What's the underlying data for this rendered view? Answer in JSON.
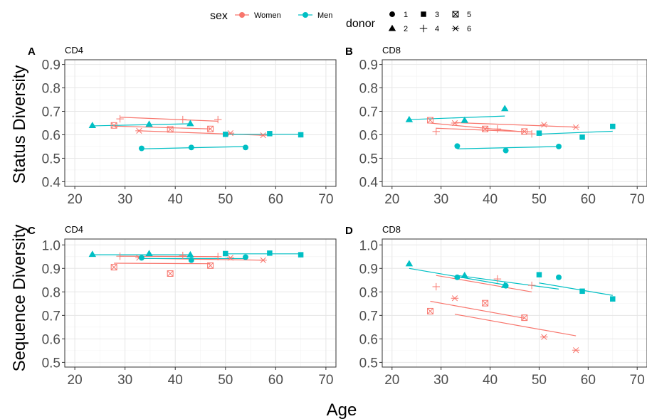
{
  "figure": {
    "xlabel_shared": "Age",
    "row_labels": [
      "Status Diversity",
      "Sequence Diversity"
    ]
  },
  "legend": {
    "sex_title": "sex",
    "sex_entries": [
      {
        "label": "Women",
        "color": "#F8766D"
      },
      {
        "label": "Men",
        "color": "#00BFC4"
      }
    ],
    "donor_title": "donor",
    "donor_entries": [
      {
        "label": "1",
        "shape": "circle"
      },
      {
        "label": "2",
        "shape": "triangle"
      },
      {
        "label": "3",
        "shape": "square"
      },
      {
        "label": "4",
        "shape": "plus"
      },
      {
        "label": "5",
        "shape": "boxed-x"
      },
      {
        "label": "6",
        "shape": "asterisk"
      }
    ]
  },
  "chart_data": [
    {
      "panel": "A",
      "title": "CD4",
      "type": "scatter",
      "xlim": [
        18,
        72
      ],
      "ylim": [
        0.38,
        0.92
      ],
      "xticks": [
        20,
        30,
        40,
        50,
        60,
        70
      ],
      "yticks": [
        0.4,
        0.5,
        0.6,
        0.7,
        0.8,
        0.9
      ],
      "ytick_labels": [
        "0.4",
        "0.5",
        "0.6",
        "0.7",
        "0.8",
        "0.9"
      ],
      "grid": true,
      "points": [
        {
          "x": 29,
          "y": 0.668,
          "sex": "Women",
          "donor": "4"
        },
        {
          "x": 41.5,
          "y": 0.665,
          "sex": "Women",
          "donor": "4"
        },
        {
          "x": 48.5,
          "y": 0.665,
          "sex": "Women",
          "donor": "4"
        },
        {
          "x": 27.8,
          "y": 0.64,
          "sex": "Women",
          "donor": "5"
        },
        {
          "x": 39,
          "y": 0.623,
          "sex": "Women",
          "donor": "5"
        },
        {
          "x": 47,
          "y": 0.625,
          "sex": "Women",
          "donor": "5"
        },
        {
          "x": 32.8,
          "y": 0.617,
          "sex": "Women",
          "donor": "6"
        },
        {
          "x": 51,
          "y": 0.607,
          "sex": "Women",
          "donor": "6"
        },
        {
          "x": 57.5,
          "y": 0.598,
          "sex": "Women",
          "donor": "6"
        },
        {
          "x": 23.5,
          "y": 0.64,
          "sex": "Men",
          "donor": "2"
        },
        {
          "x": 34.8,
          "y": 0.645,
          "sex": "Men",
          "donor": "2"
        },
        {
          "x": 43,
          "y": 0.648,
          "sex": "Men",
          "donor": "2"
        },
        {
          "x": 50,
          "y": 0.602,
          "sex": "Men",
          "donor": "3"
        },
        {
          "x": 58.8,
          "y": 0.605,
          "sex": "Men",
          "donor": "3"
        },
        {
          "x": 65,
          "y": 0.6,
          "sex": "Men",
          "donor": "3"
        },
        {
          "x": 33.3,
          "y": 0.542,
          "sex": "Men",
          "donor": "1"
        },
        {
          "x": 43.2,
          "y": 0.546,
          "sex": "Men",
          "donor": "1"
        },
        {
          "x": 54,
          "y": 0.546,
          "sex": "Men",
          "donor": "1"
        }
      ],
      "fit_lines": [
        {
          "sex": "Women",
          "donor": "4",
          "x": [
            29,
            48.5
          ],
          "y": [
            0.675,
            0.658
          ]
        },
        {
          "sex": "Women",
          "donor": "5",
          "x": [
            27.8,
            47
          ],
          "y": [
            0.637,
            0.625
          ]
        },
        {
          "sex": "Women",
          "donor": "6",
          "x": [
            32.8,
            57.5
          ],
          "y": [
            0.617,
            0.598
          ]
        },
        {
          "sex": "Men",
          "donor": "2",
          "x": [
            23.5,
            43
          ],
          "y": [
            0.638,
            0.647
          ]
        },
        {
          "sex": "Men",
          "donor": "3",
          "x": [
            50,
            65
          ],
          "y": [
            0.602,
            0.602
          ]
        },
        {
          "sex": "Men",
          "donor": "1",
          "x": [
            33.3,
            54
          ],
          "y": [
            0.54,
            0.55
          ]
        }
      ]
    },
    {
      "panel": "B",
      "title": "CD8",
      "type": "scatter",
      "xlim": [
        18,
        72
      ],
      "ylim": [
        0.38,
        0.92
      ],
      "xticks": [
        20,
        30,
        40,
        50,
        60,
        70
      ],
      "yticks": [
        0.4,
        0.5,
        0.6,
        0.7,
        0.8,
        0.9
      ],
      "ytick_labels": [
        "0.4",
        "0.5",
        "0.6",
        "0.7",
        "0.8",
        "0.9"
      ],
      "grid": true,
      "points": [
        {
          "x": 29,
          "y": 0.614,
          "sex": "Women",
          "donor": "4"
        },
        {
          "x": 41.5,
          "y": 0.625,
          "sex": "Women",
          "donor": "4"
        },
        {
          "x": 48.5,
          "y": 0.604,
          "sex": "Women",
          "donor": "4"
        },
        {
          "x": 27.8,
          "y": 0.662,
          "sex": "Women",
          "donor": "5"
        },
        {
          "x": 39,
          "y": 0.625,
          "sex": "Women",
          "donor": "5"
        },
        {
          "x": 47,
          "y": 0.614,
          "sex": "Women",
          "donor": "5"
        },
        {
          "x": 32.8,
          "y": 0.65,
          "sex": "Women",
          "donor": "6"
        },
        {
          "x": 51,
          "y": 0.643,
          "sex": "Women",
          "donor": "6"
        },
        {
          "x": 57.5,
          "y": 0.632,
          "sex": "Women",
          "donor": "6"
        },
        {
          "x": 23.5,
          "y": 0.665,
          "sex": "Men",
          "donor": "2"
        },
        {
          "x": 34.8,
          "y": 0.662,
          "sex": "Men",
          "donor": "2"
        },
        {
          "x": 43,
          "y": 0.712,
          "sex": "Men",
          "donor": "2"
        },
        {
          "x": 50,
          "y": 0.607,
          "sex": "Men",
          "donor": "3"
        },
        {
          "x": 58.8,
          "y": 0.59,
          "sex": "Men",
          "donor": "3"
        },
        {
          "x": 65,
          "y": 0.636,
          "sex": "Men",
          "donor": "3"
        },
        {
          "x": 33.3,
          "y": 0.552,
          "sex": "Men",
          "donor": "1"
        },
        {
          "x": 43.2,
          "y": 0.533,
          "sex": "Men",
          "donor": "1"
        },
        {
          "x": 54,
          "y": 0.55,
          "sex": "Men",
          "donor": "1"
        }
      ],
      "fit_lines": [
        {
          "sex": "Women",
          "donor": "4",
          "x": [
            29,
            48.5
          ],
          "y": [
            0.628,
            0.612
          ]
        },
        {
          "sex": "Women",
          "donor": "5",
          "x": [
            27.8,
            47
          ],
          "y": [
            0.65,
            0.612
          ]
        },
        {
          "sex": "Women",
          "donor": "6",
          "x": [
            32.8,
            57.5
          ],
          "y": [
            0.652,
            0.633
          ]
        },
        {
          "sex": "Men",
          "donor": "2",
          "x": [
            23.5,
            43
          ],
          "y": [
            0.665,
            0.68
          ]
        },
        {
          "sex": "Men",
          "donor": "3",
          "x": [
            50,
            65
          ],
          "y": [
            0.603,
            0.615
          ]
        },
        {
          "sex": "Men",
          "donor": "1",
          "x": [
            33.3,
            54
          ],
          "y": [
            0.54,
            0.55
          ]
        }
      ]
    },
    {
      "panel": "C",
      "title": "CD4",
      "type": "scatter",
      "xlim": [
        18,
        72
      ],
      "ylim": [
        0.48,
        1.025
      ],
      "xticks": [
        20,
        30,
        40,
        50,
        60,
        70
      ],
      "yticks": [
        0.5,
        0.6,
        0.7,
        0.8,
        0.9,
        1.0
      ],
      "ytick_labels": [
        "0.5",
        "0.6",
        "0.7",
        "0.8",
        "0.9",
        "1.0"
      ],
      "grid": true,
      "points": [
        {
          "x": 29,
          "y": 0.952,
          "sex": "Women",
          "donor": "4"
        },
        {
          "x": 41.5,
          "y": 0.955,
          "sex": "Women",
          "donor": "4"
        },
        {
          "x": 48.5,
          "y": 0.95,
          "sex": "Women",
          "donor": "4"
        },
        {
          "x": 27.8,
          "y": 0.905,
          "sex": "Women",
          "donor": "5"
        },
        {
          "x": 39,
          "y": 0.878,
          "sex": "Women",
          "donor": "5"
        },
        {
          "x": 47,
          "y": 0.912,
          "sex": "Women",
          "donor": "5"
        },
        {
          "x": 32.8,
          "y": 0.945,
          "sex": "Women",
          "donor": "6"
        },
        {
          "x": 51,
          "y": 0.945,
          "sex": "Women",
          "donor": "6"
        },
        {
          "x": 57.5,
          "y": 0.935,
          "sex": "Women",
          "donor": "6"
        },
        {
          "x": 23.5,
          "y": 0.96,
          "sex": "Men",
          "donor": "2"
        },
        {
          "x": 34.8,
          "y": 0.963,
          "sex": "Men",
          "donor": "2"
        },
        {
          "x": 43,
          "y": 0.958,
          "sex": "Men",
          "donor": "2"
        },
        {
          "x": 50,
          "y": 0.963,
          "sex": "Men",
          "donor": "3"
        },
        {
          "x": 58.8,
          "y": 0.965,
          "sex": "Men",
          "donor": "3"
        },
        {
          "x": 65,
          "y": 0.958,
          "sex": "Men",
          "donor": "3"
        },
        {
          "x": 33.3,
          "y": 0.945,
          "sex": "Men",
          "donor": "1"
        },
        {
          "x": 43.2,
          "y": 0.935,
          "sex": "Men",
          "donor": "1"
        },
        {
          "x": 54,
          "y": 0.948,
          "sex": "Men",
          "donor": "1"
        }
      ],
      "fit_lines": [
        {
          "sex": "Women",
          "donor": "4",
          "x": [
            29,
            48.5
          ],
          "y": [
            0.952,
            0.95
          ]
        },
        {
          "sex": "Women",
          "donor": "5",
          "x": [
            27.8,
            47
          ],
          "y": [
            0.922,
            0.92
          ]
        },
        {
          "sex": "Women",
          "donor": "6",
          "x": [
            32.8,
            57.5
          ],
          "y": [
            0.943,
            0.935
          ]
        },
        {
          "sex": "Men",
          "donor": "2",
          "x": [
            23.5,
            43
          ],
          "y": [
            0.958,
            0.958
          ]
        },
        {
          "sex": "Men",
          "donor": "3",
          "x": [
            50,
            65
          ],
          "y": [
            0.962,
            0.962
          ]
        },
        {
          "sex": "Men",
          "donor": "1",
          "x": [
            33.3,
            54
          ],
          "y": [
            0.942,
            0.942
          ]
        }
      ]
    },
    {
      "panel": "D",
      "title": "CD8",
      "type": "scatter",
      "xlim": [
        18,
        72
      ],
      "ylim": [
        0.48,
        1.025
      ],
      "xticks": [
        20,
        30,
        40,
        50,
        60,
        70
      ],
      "yticks": [
        0.5,
        0.6,
        0.7,
        0.8,
        0.9,
        1.0
      ],
      "ytick_labels": [
        "0.5",
        "0.6",
        "0.7",
        "0.8",
        "0.9",
        "1.0"
      ],
      "grid": true,
      "points": [
        {
          "x": 29,
          "y": 0.822,
          "sex": "Women",
          "donor": "4"
        },
        {
          "x": 41.5,
          "y": 0.855,
          "sex": "Women",
          "donor": "4"
        },
        {
          "x": 48.5,
          "y": 0.828,
          "sex": "Women",
          "donor": "4"
        },
        {
          "x": 27.8,
          "y": 0.718,
          "sex": "Women",
          "donor": "5"
        },
        {
          "x": 39,
          "y": 0.752,
          "sex": "Women",
          "donor": "5"
        },
        {
          "x": 47,
          "y": 0.69,
          "sex": "Women",
          "donor": "5"
        },
        {
          "x": 32.8,
          "y": 0.773,
          "sex": "Women",
          "donor": "6"
        },
        {
          "x": 51,
          "y": 0.608,
          "sex": "Women",
          "donor": "6"
        },
        {
          "x": 57.5,
          "y": 0.552,
          "sex": "Women",
          "donor": "6"
        },
        {
          "x": 23.5,
          "y": 0.92,
          "sex": "Men",
          "donor": "2"
        },
        {
          "x": 34.8,
          "y": 0.87,
          "sex": "Men",
          "donor": "2"
        },
        {
          "x": 43,
          "y": 0.828,
          "sex": "Men",
          "donor": "2"
        },
        {
          "x": 50,
          "y": 0.873,
          "sex": "Men",
          "donor": "3"
        },
        {
          "x": 58.8,
          "y": 0.803,
          "sex": "Men",
          "donor": "3"
        },
        {
          "x": 65,
          "y": 0.77,
          "sex": "Men",
          "donor": "3"
        },
        {
          "x": 33.3,
          "y": 0.862,
          "sex": "Men",
          "donor": "1"
        },
        {
          "x": 43.2,
          "y": 0.826,
          "sex": "Men",
          "donor": "1"
        },
        {
          "x": 54,
          "y": 0.862,
          "sex": "Men",
          "donor": "1"
        }
      ],
      "fit_lines": [
        {
          "sex": "Women",
          "donor": "4",
          "x": [
            29,
            48.5
          ],
          "y": [
            0.87,
            0.8
          ]
        },
        {
          "sex": "Women",
          "donor": "5",
          "x": [
            27.8,
            47
          ],
          "y": [
            0.76,
            0.688
          ]
        },
        {
          "sex": "Women",
          "donor": "6",
          "x": [
            32.8,
            57.5
          ],
          "y": [
            0.705,
            0.613
          ]
        },
        {
          "sex": "Men",
          "donor": "2",
          "x": [
            23.5,
            43
          ],
          "y": [
            0.9,
            0.83
          ]
        },
        {
          "sex": "Men",
          "donor": "3",
          "x": [
            50,
            65
          ],
          "y": [
            0.838,
            0.785
          ]
        },
        {
          "sex": "Men",
          "donor": "1",
          "x": [
            33.3,
            54
          ],
          "y": [
            0.87,
            0.812
          ]
        }
      ]
    }
  ]
}
